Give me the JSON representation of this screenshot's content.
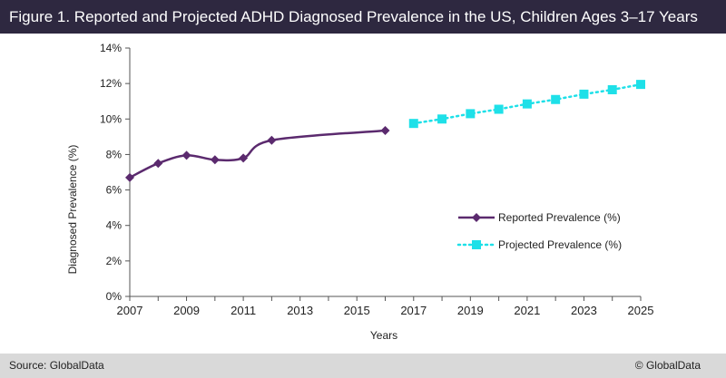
{
  "header": {
    "title": "Figure 1. Reported and Projected ADHD Diagnosed Prevalence in the US, Children Ages 3–17 Years"
  },
  "footer": {
    "source": "Source: GlobalData",
    "copyright": "© GlobalData"
  },
  "chart_data": {
    "type": "line",
    "title": "Figure 1. Reported and Projected ADHD Diagnosed Prevalence in the US, Children Ages 3–17 Years",
    "xlabel": "Years",
    "ylabel": "Diagnosed Prevalence (%)",
    "xlim": [
      2007,
      2025
    ],
    "ylim": [
      0,
      14
    ],
    "x_ticks": [
      2007,
      2009,
      2011,
      2013,
      2015,
      2017,
      2019,
      2021,
      2023,
      2025
    ],
    "y_ticks": [
      0,
      2,
      4,
      6,
      8,
      10,
      12,
      14
    ],
    "y_tick_labels": [
      "0%",
      "2%",
      "4%",
      "6%",
      "8%",
      "10%",
      "12%",
      "14%"
    ],
    "grid": false,
    "legend_position": "right",
    "series": [
      {
        "name": "Reported Prevalence (%)",
        "color": "#5b2a6e",
        "style": "solid-smooth",
        "marker": "diamond",
        "points": [
          {
            "x": 2007,
            "y": 6.7
          },
          {
            "x": 2008,
            "y": 7.5
          },
          {
            "x": 2009,
            "y": 7.95
          },
          {
            "x": 2010,
            "y": 7.7
          },
          {
            "x": 2011,
            "y": 7.8
          },
          {
            "x": 2012,
            "y": 8.8
          },
          {
            "x": 2016,
            "y": 9.35
          }
        ]
      },
      {
        "name": "Projected Prevalence (%)",
        "color": "#1ee0e8",
        "style": "dotted",
        "marker": "square",
        "points": [
          {
            "x": 2017,
            "y": 9.75
          },
          {
            "x": 2018,
            "y": 10.0
          },
          {
            "x": 2019,
            "y": 10.3
          },
          {
            "x": 2020,
            "y": 10.55
          },
          {
            "x": 2021,
            "y": 10.85
          },
          {
            "x": 2022,
            "y": 11.1
          },
          {
            "x": 2023,
            "y": 11.4
          },
          {
            "x": 2024,
            "y": 11.65
          },
          {
            "x": 2025,
            "y": 11.95
          }
        ]
      }
    ]
  }
}
